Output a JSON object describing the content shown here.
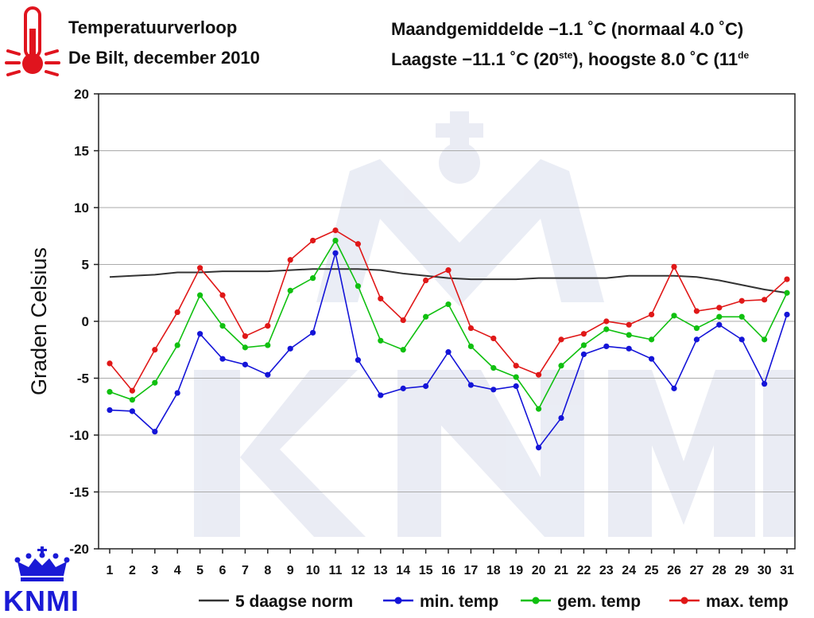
{
  "header": {
    "title": "Temperatuurverloop",
    "subtitle": "De Bilt, december 2010",
    "mean_prefix": "Maandgemiddelde −1.1 ˚C (normaal 4.0 ˚C)",
    "low_prefix": "Laagste −11.1 ˚C (20",
    "low_sup": "ste",
    "high_mid": "), hoogste 8.0 ˚C (11",
    "high_sup": "de"
  },
  "branding": {
    "logo_text": "KNMI",
    "logo_icon": "crown-icon",
    "thermometer_icon": "thermometer-icon"
  },
  "colors": {
    "norm": "#333333",
    "min": "#1414d8",
    "mean": "#10c010",
    "max": "#e01818",
    "grid": "#aaaaaa",
    "logo": "#1a1ad6",
    "thermo": "#e0141e"
  },
  "chart_data": {
    "type": "line",
    "title": "Temperatuurverloop",
    "subtitle": "De Bilt, december 2010",
    "xlabel": "",
    "ylabel": "Graden Celsius",
    "ylim": [
      -20,
      20
    ],
    "yticks": [
      20,
      15,
      10,
      5,
      0,
      -5,
      -10,
      -15,
      -20
    ],
    "x": [
      1,
      2,
      3,
      4,
      5,
      6,
      7,
      8,
      9,
      10,
      11,
      12,
      13,
      14,
      15,
      16,
      17,
      18,
      19,
      20,
      21,
      22,
      23,
      24,
      25,
      26,
      27,
      28,
      29,
      30,
      31
    ],
    "grid": true,
    "legend_position": "bottom",
    "series": [
      {
        "name": "5 daagse norm",
        "color": "#333333",
        "markers": false,
        "values": [
          3.9,
          4.0,
          4.1,
          4.3,
          4.3,
          4.4,
          4.4,
          4.4,
          4.5,
          4.6,
          4.6,
          4.6,
          4.5,
          4.2,
          4.0,
          3.8,
          3.7,
          3.7,
          3.7,
          3.8,
          3.8,
          3.8,
          3.8,
          4.0,
          4.0,
          4.0,
          3.9,
          3.6,
          3.2,
          2.8,
          2.5
        ]
      },
      {
        "name": "min. temp",
        "color": "#1414d8",
        "markers": true,
        "values": [
          -7.8,
          -7.9,
          -9.7,
          -6.3,
          -1.1,
          -3.3,
          -3.8,
          -4.7,
          -2.4,
          -1.0,
          6.0,
          -3.4,
          -6.5,
          -5.9,
          -5.7,
          -2.7,
          -5.6,
          -6.0,
          -5.7,
          -11.1,
          -8.5,
          -2.9,
          -2.2,
          -2.4,
          -3.3,
          -5.9,
          -1.6,
          -0.3,
          -1.6,
          -5.5,
          0.6
        ]
      },
      {
        "name": "gem. temp",
        "color": "#10c010",
        "markers": true,
        "values": [
          -6.2,
          -6.9,
          -5.4,
          -2.1,
          2.3,
          -0.4,
          -2.3,
          -2.1,
          2.7,
          3.8,
          7.1,
          3.1,
          -1.7,
          -2.5,
          0.4,
          1.5,
          -2.2,
          -4.1,
          -4.9,
          -7.7,
          -3.9,
          -2.1,
          -0.7,
          -1.2,
          -1.6,
          0.5,
          -0.6,
          0.4,
          0.4,
          -1.6,
          2.5
        ]
      },
      {
        "name": "max. temp",
        "color": "#e01818",
        "markers": true,
        "values": [
          -3.7,
          -6.1,
          -2.5,
          0.8,
          4.7,
          2.3,
          -1.3,
          -0.4,
          5.4,
          7.1,
          8.0,
          6.8,
          2.0,
          0.1,
          3.6,
          4.5,
          -0.6,
          -1.5,
          -3.9,
          -4.7,
          -1.6,
          -1.1,
          0.0,
          -0.3,
          0.6,
          4.8,
          0.9,
          1.2,
          1.8,
          1.9,
          3.7
        ]
      }
    ]
  }
}
